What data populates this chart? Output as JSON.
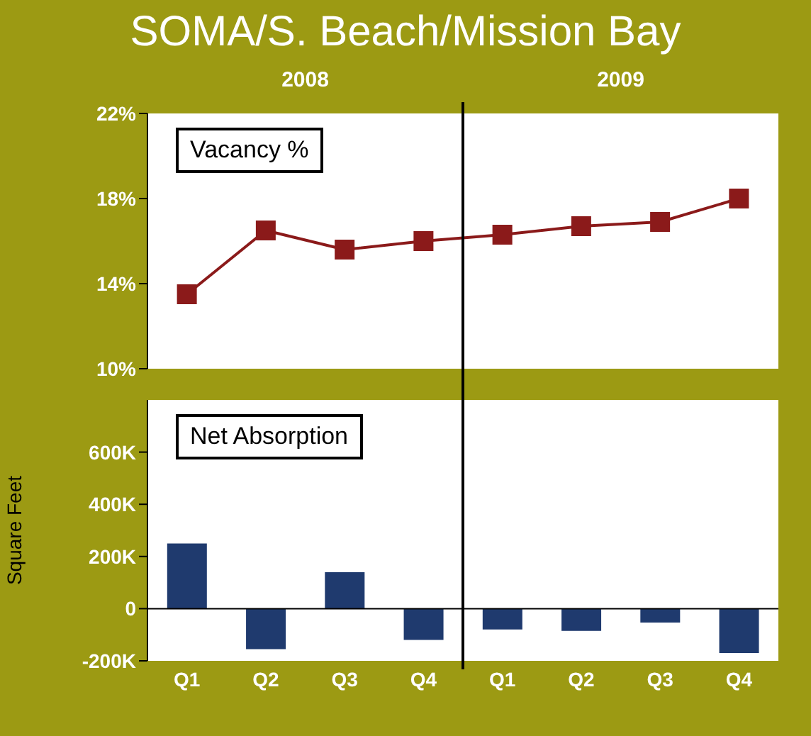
{
  "chart_data": [
    {
      "type": "line",
      "title": "SOMA/S. Beach/Mission Bay",
      "ylabel": "Vacancy %",
      "annotations": [
        "2008",
        "2009"
      ],
      "categories": [
        null,
        null,
        null,
        null,
        null,
        null,
        null,
        null
      ],
      "series": [
        {
          "color": "#8b1a1a",
          "values": [
            13.5,
            16.5,
            15.6,
            16.0,
            16.3,
            16.7,
            16.9,
            18.0
          ]
        }
      ],
      "marker": "square",
      "ylim": [
        10,
        22
      ],
      "yticks": [
        {
          "value": 10,
          "label": "10%"
        },
        {
          "value": 14,
          "label": "14%"
        },
        {
          "value": 18,
          "label": "18%"
        },
        {
          "value": 22,
          "label": "22%"
        }
      ],
      "tick_labels": "y"
    },
    {
      "type": "bar",
      "title": "Net Absorption",
      "ylabel": "Square Feet",
      "categories": [
        "Q1",
        "Q2",
        "Q3",
        "Q4",
        "Q1",
        "Q2",
        "Q3",
        "Q4"
      ],
      "series": [
        {
          "color": "#1f3a6e",
          "values": [
            250000,
            -155000,
            140000,
            -120000,
            -80000,
            -85000,
            -53000,
            -170000
          ]
        }
      ],
      "ylim": [
        -200000,
        800000
      ],
      "yticks": [
        {
          "value": -200000,
          "label": "-200K"
        },
        0,
        {
          "value": 200000,
          "label": "200K"
        },
        {
          "value": 400000,
          "label": "400K"
        },
        {
          "value": 600000,
          "label": "600K"
        }
      ]
    }
  ]
}
